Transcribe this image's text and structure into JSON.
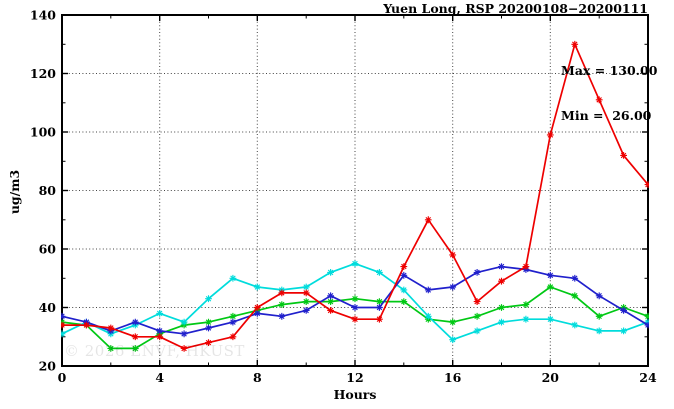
{
  "watermark": "© 2026 ENVF, HKUST",
  "chart_data": {
    "type": "line",
    "title": "Yuen Long, RSP 20200108−20200111",
    "xlabel": "Hours",
    "ylabel": "ug/m3",
    "xlim": [
      0,
      24
    ],
    "ylim": [
      20,
      140
    ],
    "xticks_major": [
      0,
      4,
      8,
      12,
      16,
      20,
      24
    ],
    "xticks_minor": [
      2,
      6,
      10,
      14,
      18,
      22
    ],
    "yticks_major": [
      20,
      40,
      60,
      80,
      100,
      120,
      140
    ],
    "yticks_minor": [
      30,
      50,
      70,
      90,
      110,
      130
    ],
    "grid": "dotted-at-major-ticks",
    "legend": "none",
    "marker": "asterisk",
    "annotations": {
      "max": "Max = 130.00",
      "min": "Min =  26.00"
    },
    "x": [
      0,
      1,
      2,
      3,
      4,
      5,
      6,
      7,
      8,
      9,
      10,
      11,
      12,
      13,
      14,
      15,
      16,
      17,
      18,
      19,
      20,
      21,
      22,
      23,
      24
    ],
    "series": [
      {
        "name": "green",
        "color": "#00c814",
        "values": [
          35,
          34,
          26,
          26,
          31,
          34,
          35,
          37,
          39,
          41,
          42,
          42,
          43,
          42,
          42,
          36,
          35,
          37,
          40,
          41,
          47,
          44,
          37,
          40,
          37
        ]
      },
      {
        "name": "cyan",
        "color": "#00dcdc",
        "values": [
          31,
          35,
          31,
          34,
          38,
          35,
          43,
          50,
          47,
          46,
          47,
          52,
          55,
          52,
          46,
          37,
          29,
          32,
          35,
          36,
          36,
          34,
          32,
          32,
          35
        ]
      },
      {
        "name": "blue",
        "color": "#2020cc",
        "values": [
          37,
          35,
          32,
          35,
          32,
          31,
          33,
          35,
          38,
          37,
          39,
          44,
          40,
          40,
          51,
          46,
          47,
          52,
          54,
          53,
          51,
          50,
          44,
          39,
          34
        ]
      },
      {
        "name": "red",
        "color": "#ee0000",
        "values": [
          34,
          34,
          33,
          30,
          30,
          26,
          28,
          30,
          40,
          45,
          45,
          39,
          36,
          36,
          54,
          70,
          58,
          42,
          49,
          54,
          99,
          130,
          111,
          92,
          82
        ]
      }
    ]
  }
}
